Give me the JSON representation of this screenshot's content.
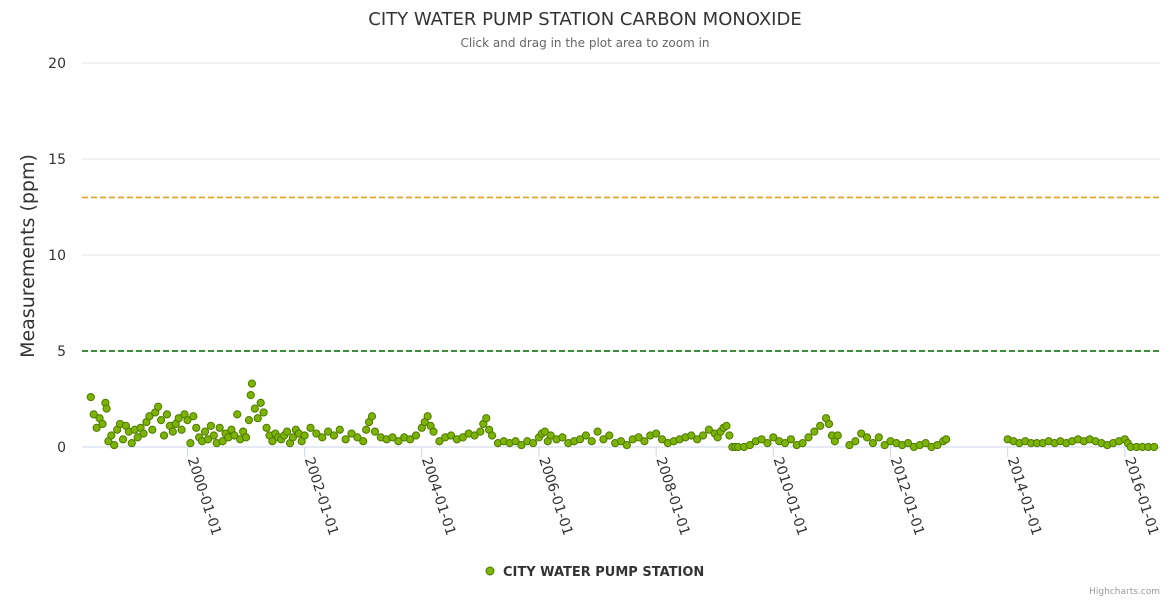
{
  "chart_data": {
    "type": "scatter",
    "title": "CITY WATER PUMP STATION CARBON MONOXIDE",
    "subtitle": "Click and drag in the plot area to zoom in",
    "ylabel": "Measurements (ppm)",
    "xlabel": "",
    "ylim": [
      0,
      20
    ],
    "yticks": [
      "0",
      "5",
      "10",
      "15",
      "20"
    ],
    "xlim": [
      1998.2,
      2016.6
    ],
    "xticks": [
      {
        "label": "2000-01-01",
        "value": 2000.0
      },
      {
        "label": "2002-01-01",
        "value": 2002.0
      },
      {
        "label": "2004-01-01",
        "value": 2004.0
      },
      {
        "label": "2006-01-01",
        "value": 2006.0
      },
      {
        "label": "2008-01-01",
        "value": 2008.0
      },
      {
        "label": "2010-01-01",
        "value": 2010.0
      },
      {
        "label": "2012-01-01",
        "value": 2012.0
      },
      {
        "label": "2014-01-01",
        "value": 2014.0
      },
      {
        "label": "2016-01-01",
        "value": 2016.0
      }
    ],
    "grid": true,
    "legend_position": "bottom-center",
    "series": [
      {
        "name": "CITY WATER PUMP STATION",
        "color": "#7cb305",
        "points": [
          [
            1998.35,
            2.6
          ],
          [
            1998.4,
            1.7
          ],
          [
            1998.45,
            1.0
          ],
          [
            1998.5,
            1.5
          ],
          [
            1998.55,
            1.2
          ],
          [
            1998.6,
            2.3
          ],
          [
            1998.62,
            2.0
          ],
          [
            1998.65,
            0.3
          ],
          [
            1998.7,
            0.6
          ],
          [
            1998.75,
            0.1
          ],
          [
            1998.8,
            0.9
          ],
          [
            1998.85,
            1.2
          ],
          [
            1998.9,
            0.4
          ],
          [
            1998.95,
            1.1
          ],
          [
            1999.0,
            0.8
          ],
          [
            1999.05,
            0.2
          ],
          [
            1999.1,
            0.9
          ],
          [
            1999.15,
            0.5
          ],
          [
            1999.2,
            1.0
          ],
          [
            1999.25,
            0.7
          ],
          [
            1999.3,
            1.3
          ],
          [
            1999.35,
            1.6
          ],
          [
            1999.4,
            0.9
          ],
          [
            1999.45,
            1.8
          ],
          [
            1999.5,
            2.1
          ],
          [
            1999.55,
            1.4
          ],
          [
            1999.6,
            0.6
          ],
          [
            1999.65,
            1.7
          ],
          [
            1999.7,
            1.1
          ],
          [
            1999.75,
            0.8
          ],
          [
            1999.8,
            1.2
          ],
          [
            1999.85,
            1.5
          ],
          [
            1999.9,
            0.9
          ],
          [
            1999.95,
            1.7
          ],
          [
            2000.0,
            1.4
          ],
          [
            2000.05,
            0.2
          ],
          [
            2000.1,
            1.6
          ],
          [
            2000.15,
            1.0
          ],
          [
            2000.2,
            0.5
          ],
          [
            2000.25,
            0.3
          ],
          [
            2000.3,
            0.8
          ],
          [
            2000.35,
            0.4
          ],
          [
            2000.4,
            1.1
          ],
          [
            2000.45,
            0.6
          ],
          [
            2000.5,
            0.2
          ],
          [
            2000.55,
            1.0
          ],
          [
            2000.6,
            0.3
          ],
          [
            2000.65,
            0.7
          ],
          [
            2000.7,
            0.5
          ],
          [
            2000.75,
            0.9
          ],
          [
            2000.8,
            0.6
          ],
          [
            2000.85,
            1.7
          ],
          [
            2000.9,
            0.4
          ],
          [
            2000.95,
            0.8
          ],
          [
            2001.0,
            0.5
          ],
          [
            2001.05,
            1.4
          ],
          [
            2001.08,
            2.7
          ],
          [
            2001.1,
            3.3
          ],
          [
            2001.15,
            2.0
          ],
          [
            2001.2,
            1.5
          ],
          [
            2001.25,
            2.3
          ],
          [
            2001.3,
            1.8
          ],
          [
            2001.35,
            1.0
          ],
          [
            2001.4,
            0.6
          ],
          [
            2001.45,
            0.3
          ],
          [
            2001.5,
            0.7
          ],
          [
            2001.55,
            0.5
          ],
          [
            2001.6,
            0.4
          ],
          [
            2001.65,
            0.6
          ],
          [
            2001.7,
            0.8
          ],
          [
            2001.75,
            0.2
          ],
          [
            2001.8,
            0.5
          ],
          [
            2001.85,
            0.9
          ],
          [
            2001.9,
            0.7
          ],
          [
            2001.95,
            0.3
          ],
          [
            2002.0,
            0.6
          ],
          [
            2002.1,
            1.0
          ],
          [
            2002.2,
            0.7
          ],
          [
            2002.3,
            0.5
          ],
          [
            2002.4,
            0.8
          ],
          [
            2002.5,
            0.6
          ],
          [
            2002.6,
            0.9
          ],
          [
            2002.7,
            0.4
          ],
          [
            2002.8,
            0.7
          ],
          [
            2002.9,
            0.5
          ],
          [
            2003.0,
            0.3
          ],
          [
            2003.05,
            0.9
          ],
          [
            2003.1,
            1.3
          ],
          [
            2003.15,
            1.6
          ],
          [
            2003.2,
            0.8
          ],
          [
            2003.3,
            0.5
          ],
          [
            2003.4,
            0.4
          ],
          [
            2003.5,
            0.5
          ],
          [
            2003.6,
            0.3
          ],
          [
            2003.7,
            0.5
          ],
          [
            2003.8,
            0.4
          ],
          [
            2003.9,
            0.6
          ],
          [
            2004.0,
            1.0
          ],
          [
            2004.05,
            1.3
          ],
          [
            2004.1,
            1.6
          ],
          [
            2004.15,
            1.1
          ],
          [
            2004.2,
            0.8
          ],
          [
            2004.3,
            0.3
          ],
          [
            2004.4,
            0.5
          ],
          [
            2004.5,
            0.6
          ],
          [
            2004.6,
            0.4
          ],
          [
            2004.7,
            0.5
          ],
          [
            2004.8,
            0.7
          ],
          [
            2004.9,
            0.6
          ],
          [
            2005.0,
            0.8
          ],
          [
            2005.05,
            1.2
          ],
          [
            2005.1,
            1.5
          ],
          [
            2005.15,
            0.9
          ],
          [
            2005.2,
            0.6
          ],
          [
            2005.3,
            0.2
          ],
          [
            2005.4,
            0.3
          ],
          [
            2005.5,
            0.2
          ],
          [
            2005.6,
            0.3
          ],
          [
            2005.7,
            0.1
          ],
          [
            2005.8,
            0.3
          ],
          [
            2005.9,
            0.2
          ],
          [
            2006.0,
            0.5
          ],
          [
            2006.05,
            0.7
          ],
          [
            2006.1,
            0.8
          ],
          [
            2006.15,
            0.3
          ],
          [
            2006.2,
            0.6
          ],
          [
            2006.3,
            0.4
          ],
          [
            2006.4,
            0.5
          ],
          [
            2006.5,
            0.2
          ],
          [
            2006.6,
            0.3
          ],
          [
            2006.7,
            0.4
          ],
          [
            2006.8,
            0.6
          ],
          [
            2006.9,
            0.3
          ],
          [
            2007.0,
            0.8
          ],
          [
            2007.1,
            0.4
          ],
          [
            2007.2,
            0.6
          ],
          [
            2007.3,
            0.2
          ],
          [
            2007.4,
            0.3
          ],
          [
            2007.5,
            0.1
          ],
          [
            2007.6,
            0.4
          ],
          [
            2007.7,
            0.5
          ],
          [
            2007.8,
            0.3
          ],
          [
            2007.9,
            0.6
          ],
          [
            2008.0,
            0.7
          ],
          [
            2008.1,
            0.4
          ],
          [
            2008.2,
            0.2
          ],
          [
            2008.3,
            0.3
          ],
          [
            2008.4,
            0.4
          ],
          [
            2008.5,
            0.5
          ],
          [
            2008.6,
            0.6
          ],
          [
            2008.7,
            0.4
          ],
          [
            2008.8,
            0.6
          ],
          [
            2008.9,
            0.9
          ],
          [
            2009.0,
            0.7
          ],
          [
            2009.05,
            0.5
          ],
          [
            2009.1,
            0.8
          ],
          [
            2009.15,
            1.0
          ],
          [
            2009.2,
            1.1
          ],
          [
            2009.25,
            0.6
          ],
          [
            2009.3,
            0.0
          ],
          [
            2009.35,
            0.0
          ],
          [
            2009.4,
            0.0
          ],
          [
            2009.5,
            0.0
          ],
          [
            2009.6,
            0.1
          ],
          [
            2009.7,
            0.3
          ],
          [
            2009.8,
            0.4
          ],
          [
            2009.9,
            0.2
          ],
          [
            2010.0,
            0.5
          ],
          [
            2010.1,
            0.3
          ],
          [
            2010.2,
            0.2
          ],
          [
            2010.3,
            0.4
          ],
          [
            2010.4,
            0.1
          ],
          [
            2010.5,
            0.2
          ],
          [
            2010.6,
            0.5
          ],
          [
            2010.7,
            0.8
          ],
          [
            2010.8,
            1.1
          ],
          [
            2010.9,
            1.5
          ],
          [
            2010.95,
            1.2
          ],
          [
            2011.0,
            0.6
          ],
          [
            2011.05,
            0.3
          ],
          [
            2011.1,
            0.6
          ],
          [
            2011.3,
            0.1
          ],
          [
            2011.4,
            0.3
          ],
          [
            2011.5,
            0.7
          ],
          [
            2011.6,
            0.5
          ],
          [
            2011.7,
            0.2
          ],
          [
            2011.8,
            0.5
          ],
          [
            2011.9,
            0.1
          ],
          [
            2012.0,
            0.3
          ],
          [
            2012.1,
            0.2
          ],
          [
            2012.2,
            0.1
          ],
          [
            2012.3,
            0.2
          ],
          [
            2012.4,
            0.0
          ],
          [
            2012.5,
            0.1
          ],
          [
            2012.6,
            0.2
          ],
          [
            2012.7,
            0.0
          ],
          [
            2012.8,
            0.1
          ],
          [
            2012.9,
            0.3
          ],
          [
            2012.95,
            0.4
          ],
          [
            2014.0,
            0.4
          ],
          [
            2014.1,
            0.3
          ],
          [
            2014.2,
            0.2
          ],
          [
            2014.3,
            0.3
          ],
          [
            2014.4,
            0.2
          ],
          [
            2014.5,
            0.2
          ],
          [
            2014.6,
            0.2
          ],
          [
            2014.7,
            0.3
          ],
          [
            2014.8,
            0.2
          ],
          [
            2014.9,
            0.3
          ],
          [
            2015.0,
            0.2
          ],
          [
            2015.1,
            0.3
          ],
          [
            2015.2,
            0.4
          ],
          [
            2015.3,
            0.3
          ],
          [
            2015.4,
            0.4
          ],
          [
            2015.5,
            0.3
          ],
          [
            2015.6,
            0.2
          ],
          [
            2015.7,
            0.1
          ],
          [
            2015.8,
            0.2
          ],
          [
            2015.9,
            0.3
          ],
          [
            2016.0,
            0.4
          ],
          [
            2016.05,
            0.2
          ],
          [
            2016.1,
            0.0
          ],
          [
            2016.2,
            0.0
          ],
          [
            2016.3,
            0.0
          ],
          [
            2016.4,
            0.0
          ],
          [
            2016.5,
            0.0
          ]
        ]
      }
    ],
    "reference_lines": [
      {
        "value": 13,
        "color": "#e0a020",
        "style": "dashed"
      },
      {
        "value": 5,
        "color": "#006400",
        "style": "dashed"
      }
    ]
  },
  "credits": "Highcharts.com"
}
